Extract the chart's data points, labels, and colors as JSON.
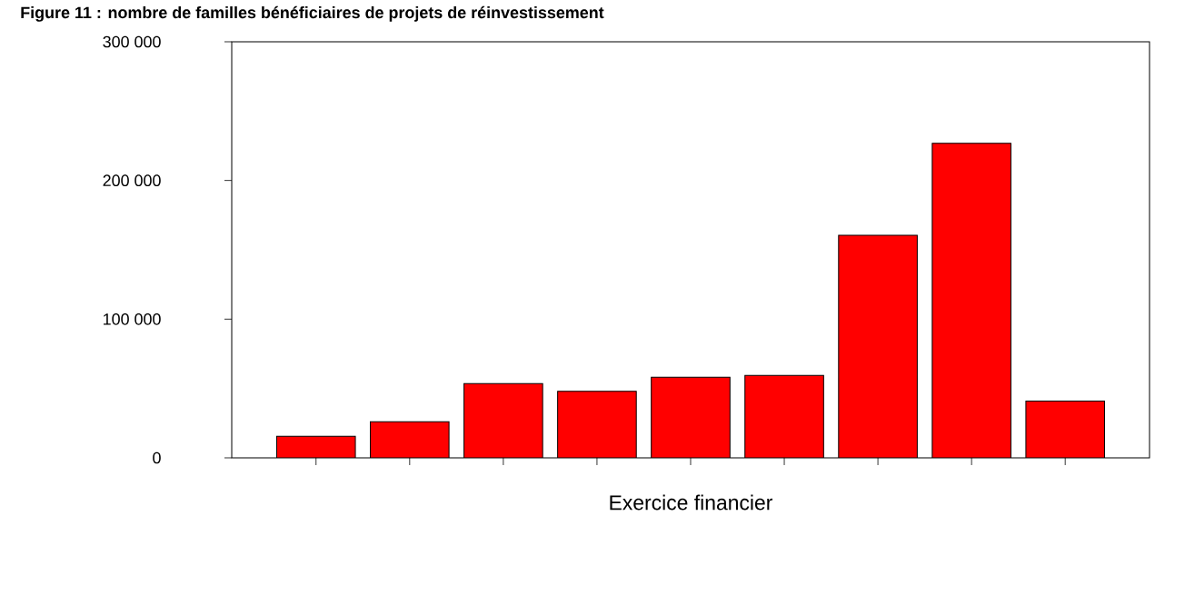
{
  "chart_data": {
    "type": "bar",
    "title": "Figure 11 : nombre de familles bénéficiaires de projets de réinvestissement",
    "xlabel": "Exercice financier",
    "categories": [
      null,
      null,
      null,
      null,
      null,
      null,
      null,
      null,
      null
    ],
    "values": [
      15600,
      26000,
      53500,
      47900,
      58200,
      59500,
      160400,
      226800,
      41000
    ],
    "color": "#ff0000",
    "ylim": [
      0,
      300000
    ],
    "yticks": [
      0,
      {
        "value": 100000,
        "label": "100 000"
      },
      {
        "value": 200000,
        "label": "200 000"
      },
      {
        "value": 300000,
        "label": "300 000"
      }
    ]
  }
}
